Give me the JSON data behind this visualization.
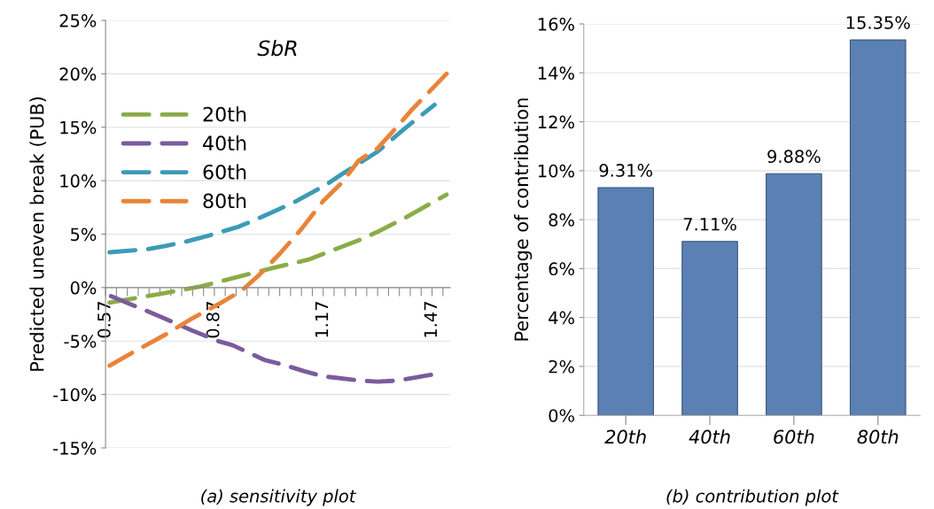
{
  "chart_data": [
    {
      "type": "line",
      "title": "SbR",
      "ylabel": "Predicted uneven break (PUB)",
      "annotations": [
        "(a) sensitivity plot"
      ],
      "xlim": [
        0.57,
        1.52
      ],
      "xticks": [
        0.57,
        {
          "value": 0.6,
          "label": null
        },
        {
          "value": 0.63,
          "label": null
        },
        {
          "value": 0.66,
          "label": null
        },
        {
          "value": 0.69,
          "label": null
        },
        {
          "value": 0.72,
          "label": null
        },
        {
          "value": 0.75,
          "label": null
        },
        {
          "value": 0.78,
          "label": null
        },
        {
          "value": 0.81,
          "label": null
        },
        {
          "value": 0.84,
          "label": null
        },
        0.87,
        {
          "value": 0.9,
          "label": null
        },
        {
          "value": 0.93,
          "label": null
        },
        {
          "value": 0.96,
          "label": null
        },
        {
          "value": 0.99,
          "label": null
        },
        {
          "value": 1.02,
          "label": null
        },
        {
          "value": 1.05,
          "label": null
        },
        {
          "value": 1.08,
          "label": null
        },
        {
          "value": 1.11,
          "label": null
        },
        {
          "value": 1.14,
          "label": null
        },
        1.17,
        {
          "value": 1.2,
          "label": null
        },
        {
          "value": 1.23,
          "label": null
        },
        {
          "value": 1.26,
          "label": null
        },
        {
          "value": 1.29,
          "label": null
        },
        {
          "value": 1.32,
          "label": null
        },
        {
          "value": 1.35,
          "label": null
        },
        {
          "value": 1.38,
          "label": null
        },
        {
          "value": 1.41,
          "label": null
        },
        {
          "value": 1.44,
          "label": null
        },
        1.47,
        {
          "value": 1.5,
          "label": null
        }
      ],
      "ylim": [
        -15,
        25
      ],
      "yticks": [
        {
          "value": -15,
          "label": "-15%"
        },
        {
          "value": -10,
          "label": "-10%"
        },
        {
          "value": -5,
          "label": "-5%"
        },
        {
          "value": 0,
          "label": "0%"
        },
        {
          "value": 5,
          "label": "5%"
        },
        {
          "value": 10,
          "label": "10%"
        },
        {
          "value": 15,
          "label": "15%"
        },
        {
          "value": 20,
          "label": "20%"
        },
        {
          "value": 25,
          "label": "25%"
        }
      ],
      "grid": "y",
      "legend": "top left",
      "line_style": "dashed",
      "marker": "none",
      "series": [
        {
          "name": "20th",
          "color": "#8aac46",
          "x": [
            0.581,
            0.702,
            0.832,
            0.889,
            1.027,
            1.128,
            1.181,
            1.266,
            1.319,
            1.4,
            1.51
          ],
          "values": [
            -1.4,
            -0.7,
            0.1,
            0.6,
            1.8,
            2.6,
            3.3,
            4.4,
            5.2,
            6.6,
            8.7
          ]
        },
        {
          "name": "40th",
          "color": "#7a5c9c",
          "x": [
            0.585,
            0.678,
            0.727,
            0.808,
            0.88,
            0.921,
            1.01,
            1.059,
            1.116,
            1.17,
            1.27,
            1.319,
            1.375,
            1.477
          ],
          "values": [
            -0.8,
            -2.1,
            -2.8,
            -4.0,
            -5.0,
            -5.4,
            -6.8,
            -7.2,
            -7.8,
            -8.3,
            -8.7,
            -8.8,
            -8.7,
            -8.1
          ]
        },
        {
          "name": "60th",
          "color": "#3c9bb5",
          "x": [
            0.581,
            0.686,
            0.735,
            0.791,
            0.848,
            0.937,
            0.986,
            1.039,
            1.091,
            1.177,
            1.221,
            1.268,
            1.319,
            1.392,
            1.432,
            1.477
          ],
          "values": [
            3.3,
            3.6,
            3.9,
            4.3,
            4.8,
            5.7,
            6.4,
            7.2,
            8.0,
            9.6,
            10.6,
            11.6,
            12.7,
            14.8,
            15.9,
            17.1
          ]
        },
        {
          "name": "80th",
          "color": "#e8843a",
          "x": [
            0.581,
            0.654,
            0.735,
            0.808,
            0.889,
            0.945,
            0.994,
            1.051,
            1.108,
            1.17,
            1.221,
            1.268,
            1.319,
            1.367,
            1.416,
            1.51
          ],
          "values": [
            -7.3,
            -5.9,
            -4.4,
            -2.9,
            -1.4,
            -0.3,
            1.2,
            3.2,
            5.4,
            8.1,
            9.8,
            11.9,
            13.0,
            14.8,
            16.7,
            20.0
          ]
        }
      ]
    },
    {
      "type": "bar",
      "ylabel": "Percentage of contribution",
      "annotations": [
        "(b) contribution plot"
      ],
      "categories": [
        "20th",
        "40th",
        "60th",
        "80th"
      ],
      "values": [
        9.31,
        7.11,
        9.88,
        15.35
      ],
      "color": "#5b80b4",
      "value_labels": [
        "9.31%",
        "7.11%",
        "9.88%",
        "15.35%"
      ],
      "ylim": [
        0,
        16
      ],
      "yticks": [
        {
          "value": 0,
          "label": "0%"
        },
        {
          "value": 2,
          "label": "2%"
        },
        {
          "value": 4,
          "label": "4%"
        },
        {
          "value": 6,
          "label": "6%"
        },
        {
          "value": 8,
          "label": "8%"
        },
        {
          "value": 10,
          "label": "10%"
        },
        {
          "value": 12,
          "label": "12%"
        },
        {
          "value": 14,
          "label": "14%"
        },
        {
          "value": 16,
          "label": "16%"
        }
      ],
      "grid": "y"
    }
  ]
}
